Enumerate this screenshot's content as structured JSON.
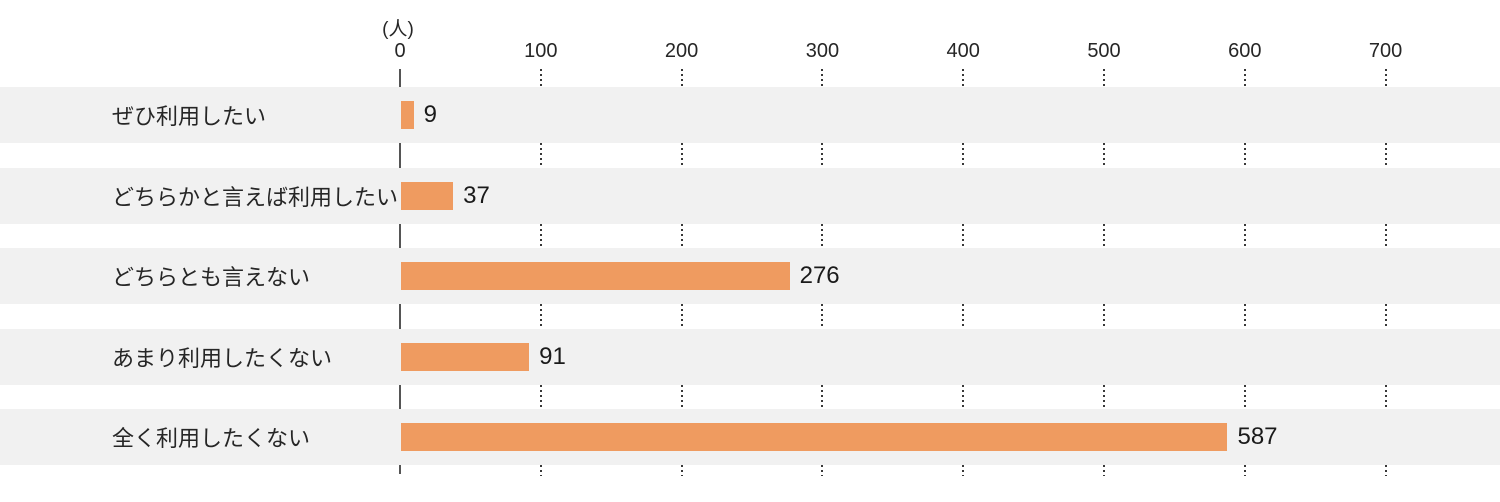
{
  "chart_data": {
    "type": "bar",
    "orientation": "horizontal",
    "title": "",
    "unit_label": "(人)",
    "categories": [
      "ぜひ利用したい",
      "どちらかと言えば利用したい",
      "どちらとも言えない",
      "あまり利用したくない",
      "全く利用したくない"
    ],
    "values": [
      9,
      37,
      276,
      91,
      587
    ],
    "value_labels": [
      "9",
      "37",
      "276",
      "91",
      "587"
    ],
    "x_ticks": [
      0,
      100,
      200,
      300,
      400,
      500,
      600,
      700
    ],
    "xlim": [
      0,
      700
    ],
    "xlabel": "",
    "ylabel": "",
    "legend": "none",
    "grid": "dotted-vertical-in-gaps",
    "colors": {
      "bar": "#EF9B60",
      "stripe": "#F1F1F1",
      "axis_line": "#555555",
      "gridline_dots": "#383838",
      "category_text": "#262626",
      "value_text": "#1A1A1A",
      "tick_text": "#262626",
      "background": "#FFFFFF"
    }
  }
}
